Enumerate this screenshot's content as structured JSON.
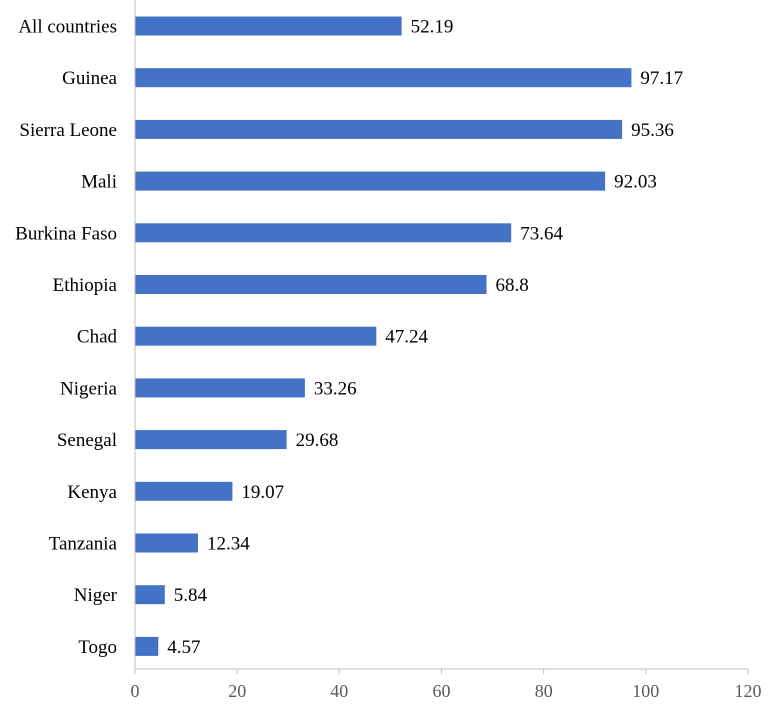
{
  "chart_data": {
    "type": "bar",
    "orientation": "horizontal",
    "categories": [
      "All countries",
      "Guinea",
      "Sierra Leone",
      "Mali",
      "Burkina Faso",
      "Ethiopia",
      "Chad",
      "Nigeria",
      "Senegal",
      "Kenya",
      "Tanzania",
      "Niger",
      "Togo"
    ],
    "values": [
      52.19,
      97.17,
      95.36,
      92.03,
      73.64,
      68.8,
      47.24,
      33.26,
      29.68,
      19.07,
      12.34,
      5.84,
      4.57
    ],
    "value_labels": [
      "52.19",
      "97.17",
      "95.36",
      "92.03",
      "73.64",
      "68.8",
      "47.24",
      "33.26",
      "29.68",
      "19.07",
      "12.34",
      "5.84",
      "4.57"
    ],
    "xlim": [
      0,
      120
    ],
    "x_ticks": [
      "0",
      "20",
      "40",
      "60",
      "80",
      "100",
      "120"
    ],
    "bar_color": "#4472c4",
    "grid": false,
    "title": "",
    "xlabel": "",
    "ylabel": ""
  }
}
